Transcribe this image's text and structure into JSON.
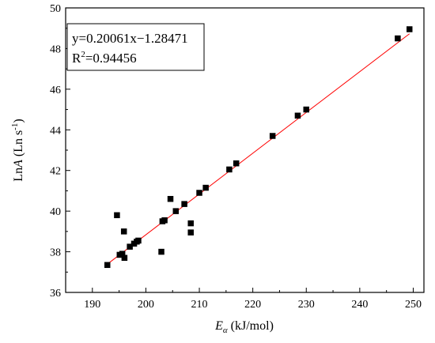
{
  "chart_data": {
    "type": "scatter",
    "title": "",
    "xlabel": {
      "var": "E",
      "sub": "α",
      "unit": " (kJ/mol)"
    },
    "ylabel": {
      "pre": "Ln",
      "var": "A",
      "unit": " (Ln s",
      "sup": "-1",
      "close": ")"
    },
    "xlim": [
      185,
      252
    ],
    "ylim": [
      36,
      50
    ],
    "xticks": [
      "190",
      "200",
      "210",
      "220",
      "230",
      "240",
      "250"
    ],
    "yticks": [
      "36",
      "38",
      "40",
      "42",
      "44",
      "46",
      "48",
      "50"
    ],
    "xtick_values": [
      190,
      200,
      210,
      220,
      230,
      240,
      250
    ],
    "ytick_values": [
      36,
      38,
      40,
      42,
      44,
      46,
      48,
      50
    ],
    "fit": {
      "equation": "y=0.20061x−1.28471",
      "r2_label": "R",
      "r2_sup": "2",
      "r2_value": "=0.94456",
      "slope": 0.20061,
      "intercept": -1.28471,
      "x_range": [
        192.8,
        249.3
      ],
      "color": "#ff0000"
    },
    "marker_color": "#000000",
    "points": [
      {
        "x": 192.8,
        "y": 37.35
      },
      {
        "x": 194.6,
        "y": 39.8
      },
      {
        "x": 195.1,
        "y": 37.85
      },
      {
        "x": 195.6,
        "y": 37.9
      },
      {
        "x": 195.9,
        "y": 39.0
      },
      {
        "x": 196.0,
        "y": 37.7
      },
      {
        "x": 197.0,
        "y": 38.25
      },
      {
        "x": 197.8,
        "y": 38.4
      },
      {
        "x": 198.3,
        "y": 38.5
      },
      {
        "x": 198.6,
        "y": 38.55
      },
      {
        "x": 202.9,
        "y": 38.0
      },
      {
        "x": 203.1,
        "y": 39.5
      },
      {
        "x": 203.5,
        "y": 39.55
      },
      {
        "x": 204.6,
        "y": 40.6
      },
      {
        "x": 205.6,
        "y": 40.0
      },
      {
        "x": 207.2,
        "y": 40.35
      },
      {
        "x": 208.4,
        "y": 39.4
      },
      {
        "x": 208.4,
        "y": 38.95
      },
      {
        "x": 210.0,
        "y": 40.9
      },
      {
        "x": 211.2,
        "y": 41.15
      },
      {
        "x": 215.6,
        "y": 42.05
      },
      {
        "x": 216.9,
        "y": 42.35
      },
      {
        "x": 223.7,
        "y": 43.7
      },
      {
        "x": 228.4,
        "y": 44.7
      },
      {
        "x": 230.0,
        "y": 45.0
      },
      {
        "x": 247.1,
        "y": 48.5
      },
      {
        "x": 249.3,
        "y": 48.95
      }
    ]
  }
}
